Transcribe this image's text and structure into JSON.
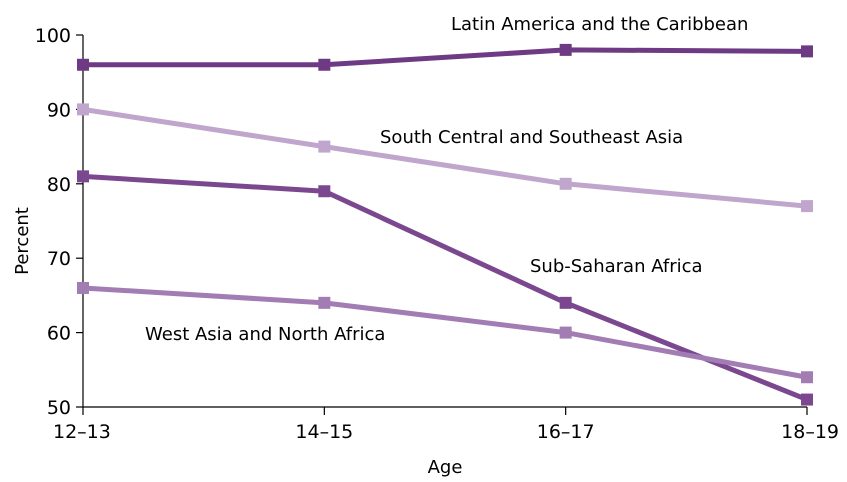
{
  "chart_data": {
    "type": "line",
    "categories": [
      "12–13",
      "14–15",
      "16–17",
      "18–19"
    ],
    "xlabel": "Age",
    "ylabel": "Percent",
    "ylim": [
      50,
      100
    ],
    "yticks": [
      50,
      60,
      70,
      80,
      90,
      100
    ],
    "grid": false,
    "legend": "none",
    "series": [
      {
        "name": "Latin America and the Caribbean",
        "values": [
          96,
          96,
          98,
          97.8
        ],
        "color": "#6e3a84"
      },
      {
        "name": "South Central and Southeast Asia",
        "values": [
          90,
          85,
          80,
          77
        ],
        "color": "#c0a6cc"
      },
      {
        "name": "Sub-Saharan Africa",
        "values": [
          81,
          79,
          64,
          51
        ],
        "color": "#7b4890"
      },
      {
        "name": "West Asia and North Africa",
        "values": [
          66,
          64,
          60,
          54
        ],
        "color": "#a27db3"
      }
    ]
  }
}
